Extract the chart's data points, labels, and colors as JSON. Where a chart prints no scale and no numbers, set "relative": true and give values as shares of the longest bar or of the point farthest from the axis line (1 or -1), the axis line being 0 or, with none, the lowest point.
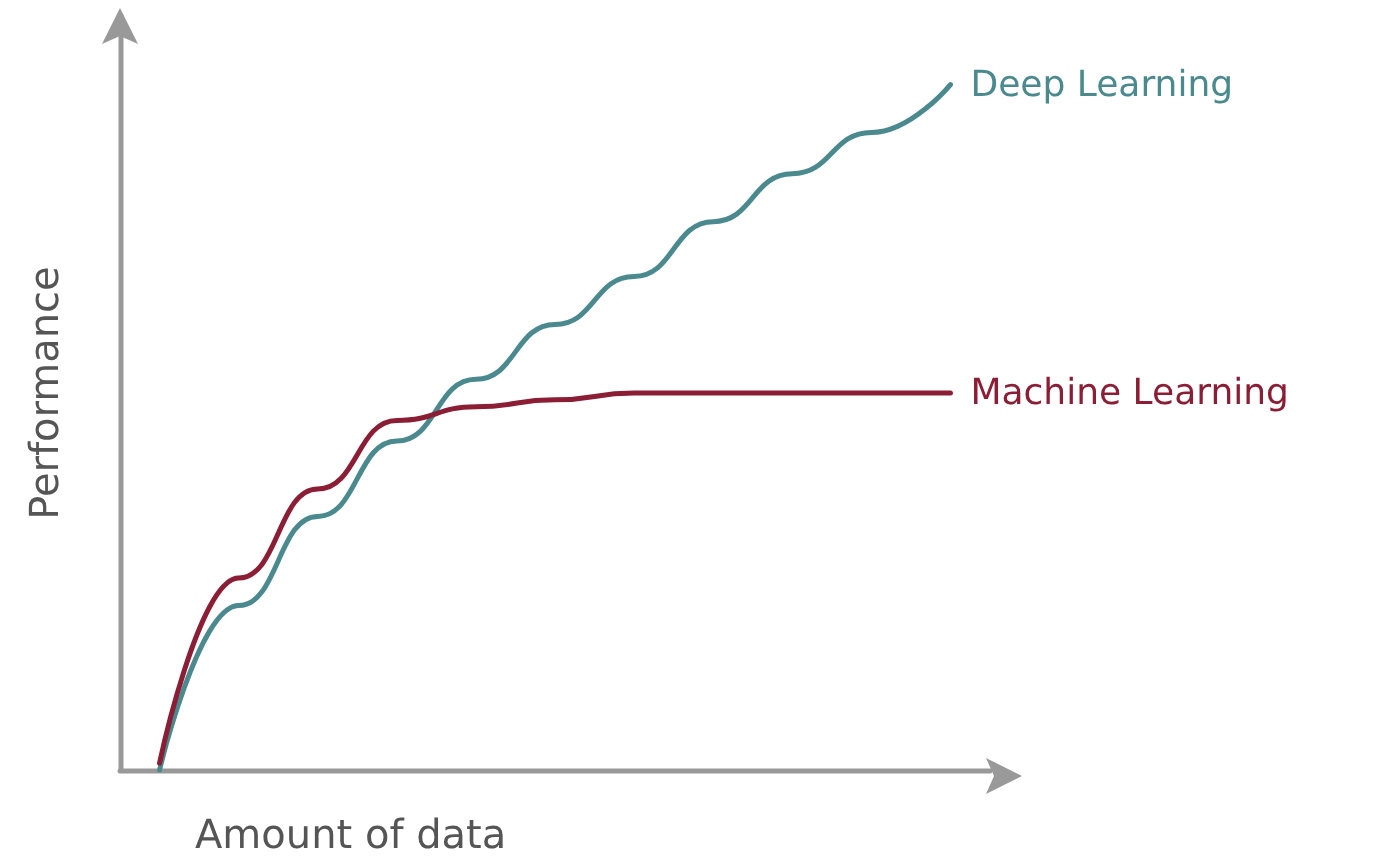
{
  "chart_data": {
    "type": "line",
    "relative": true,
    "xlabel": "Amount of data",
    "ylabel": "Performance",
    "categories": [
      null,
      null,
      null,
      null,
      null,
      null,
      null,
      null,
      null,
      null,
      null
    ],
    "series": [
      {
        "name": "Deep Learning",
        "color": "#4a8a8f",
        "values": [
          0,
          0.24,
          0.37,
          0.48,
          0.57,
          0.65,
          0.72,
          0.8,
          0.87,
          0.93,
          1
        ]
      },
      {
        "name": "Machine Learning",
        "color": "#8b1e35",
        "values": [
          0.01,
          0.28,
          0.41,
          0.51,
          0.53,
          0.54,
          0.55,
          0.55,
          0.55,
          0.55,
          0.55
        ]
      }
    ],
    "grid": false,
    "legend": false,
    "marker": "none",
    "line_style": "solid"
  }
}
